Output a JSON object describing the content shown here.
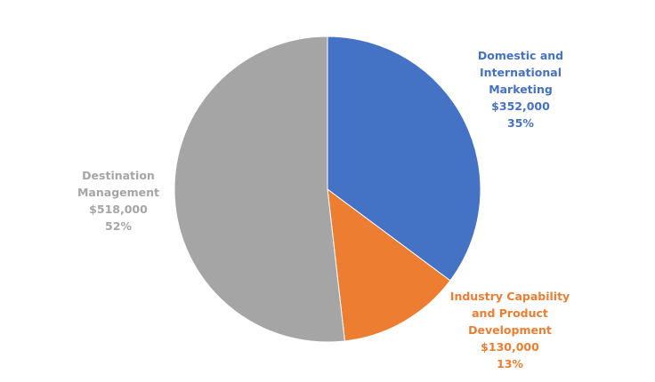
{
  "chart_data": {
    "type": "pie",
    "title": "",
    "slices": [
      {
        "name": "Domestic and International Marketing",
        "label_lines": [
          "Domestic and",
          "International",
          "Marketing"
        ],
        "value": 352000,
        "value_text": "$352,000",
        "percent": 35,
        "percent_text": "35%",
        "color": "#4472C4"
      },
      {
        "name": "Industry Capability and Product Development",
        "label_lines": [
          "Industry Capability",
          "and Product",
          "Development"
        ],
        "value": 130000,
        "value_text": "$130,000",
        "percent": 13,
        "percent_text": "13%",
        "color": "#ED7D31"
      },
      {
        "name": "Destination Management",
        "label_lines": [
          "Destination",
          "Management"
        ],
        "value": 518000,
        "value_text": "$518,000",
        "percent": 52,
        "percent_text": "52%",
        "color": "#A5A5A5"
      }
    ],
    "start_angle": "12 o'clock",
    "direction": "clockwise",
    "legend": "none"
  }
}
